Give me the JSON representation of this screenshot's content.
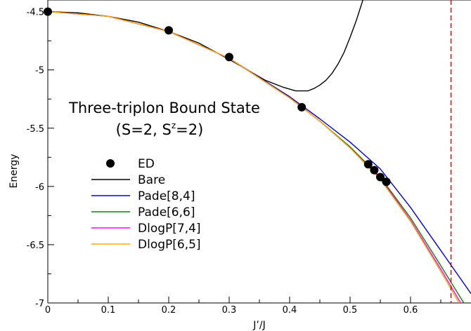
{
  "chart_data": {
    "type": "line",
    "title": "",
    "xlabel": "J’/J",
    "ylabel": "Energy",
    "xlim": [
      0,
      0.7
    ],
    "ylim": [
      -7,
      -4.4
    ],
    "x_ticks": [
      0,
      0.1,
      0.2,
      0.3,
      0.4,
      0.5,
      0.6
    ],
    "x_tick_labels": [
      "0",
      "0.1",
      "0.2",
      "0.3",
      "0.4",
      "0.5",
      "0.6"
    ],
    "y_ticks": [
      -7,
      -6.5,
      -6,
      -5.5,
      -5,
      -4.5
    ],
    "y_tick_labels": [
      "-7",
      "-6.5",
      "-6",
      "-5.5",
      "-5",
      "-4.5"
    ],
    "grid": false,
    "annotation": {
      "line1": "Three-triplon Bound State",
      "line2_prefix": "(S=2, S",
      "line2_sup": "z",
      "line2_suffix": "=2)"
    },
    "vline": {
      "x": 0.667,
      "color": "#dd0000",
      "style": "dashed"
    },
    "legend_position": "left-middle",
    "series": [
      {
        "name": "ED",
        "kind": "scatter",
        "color": "#000000",
        "x": [
          0,
          0.2,
          0.3,
          0.42,
          0.53,
          0.54,
          0.55,
          0.56
        ],
        "y": [
          -4.5,
          -4.66,
          -4.89,
          -5.32,
          -5.81,
          -5.86,
          -5.92,
          -5.96
        ]
      },
      {
        "name": "Bare",
        "kind": "line",
        "color": "#000000",
        "x": [
          0,
          0.05,
          0.1,
          0.15,
          0.2,
          0.25,
          0.3,
          0.33,
          0.36,
          0.39,
          0.41,
          0.42,
          0.43,
          0.44,
          0.45,
          0.46,
          0.47,
          0.48,
          0.49,
          0.5,
          0.51,
          0.52,
          0.53
        ],
        "y": [
          -4.5,
          -4.51,
          -4.54,
          -4.59,
          -4.67,
          -4.77,
          -4.91,
          -5.0,
          -5.09,
          -5.15,
          -5.18,
          -5.18,
          -5.18,
          -5.16,
          -5.13,
          -5.09,
          -5.03,
          -4.95,
          -4.85,
          -4.72,
          -4.58,
          -4.42,
          -4.23
        ]
      },
      {
        "name": "Pade[8,4]",
        "kind": "line",
        "color": "#0000dd",
        "x": [
          0,
          0.1,
          0.2,
          0.3,
          0.4,
          0.45,
          0.5,
          0.55,
          0.6,
          0.65,
          0.7
        ],
        "y": [
          -4.5,
          -4.54,
          -4.67,
          -4.9,
          -5.23,
          -5.42,
          -5.62,
          -5.85,
          -6.18,
          -6.55,
          -6.92
        ]
      },
      {
        "name": "Pade[6,6]",
        "kind": "line",
        "color": "#008800",
        "x": [
          0,
          0.1,
          0.2,
          0.3,
          0.4,
          0.45,
          0.5,
          0.55,
          0.6,
          0.65,
          0.7
        ],
        "y": [
          -4.5,
          -4.54,
          -4.67,
          -4.9,
          -5.24,
          -5.44,
          -5.66,
          -5.92,
          -6.27,
          -6.68,
          -7.1
        ]
      },
      {
        "name": "DlogP[7,4]",
        "kind": "line",
        "color": "#ff00ff",
        "x": [
          0,
          0.1,
          0.2,
          0.3,
          0.4,
          0.45,
          0.5,
          0.55,
          0.6,
          0.65,
          0.7
        ],
        "y": [
          -4.5,
          -4.54,
          -4.67,
          -4.9,
          -5.24,
          -5.44,
          -5.67,
          -5.93,
          -6.29,
          -6.71,
          -7.15
        ]
      },
      {
        "name": "DlogP[6,5]",
        "kind": "line",
        "color": "#ffaa00",
        "x": [
          0,
          0.1,
          0.2,
          0.3,
          0.4,
          0.45,
          0.5,
          0.55,
          0.6,
          0.65,
          0.7
        ],
        "y": [
          -4.5,
          -4.54,
          -4.67,
          -4.9,
          -5.24,
          -5.44,
          -5.67,
          -5.94,
          -6.3,
          -6.73,
          -7.18
        ]
      }
    ]
  }
}
